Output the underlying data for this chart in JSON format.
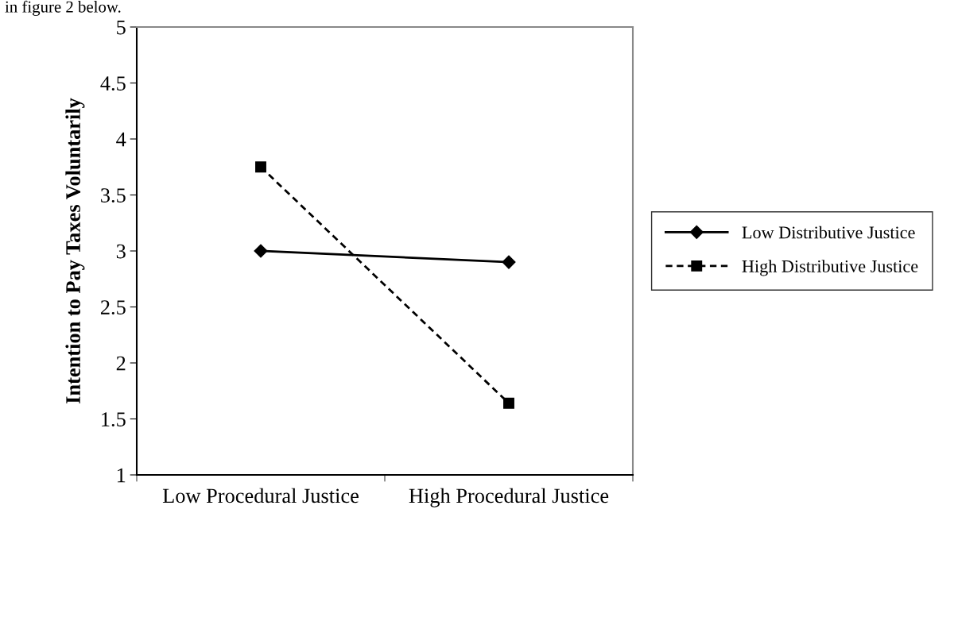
{
  "chart_data": {
    "type": "line",
    "ylabel": "Intention to Pay Taxes Voluntarily",
    "annotations": [
      "in figure 2 below."
    ],
    "categories": [
      "Low Procedural Justice",
      "High Procedural Justice"
    ],
    "series": [
      {
        "name": "Low Distributive Justice",
        "color": "#000000",
        "values": [
          3.0,
          2.9
        ],
        "marker": "diamond",
        "line_style": "solid"
      },
      {
        "name": "High Distributive Justice",
        "color": "#000000",
        "values": [
          3.75,
          1.64
        ],
        "marker": "square",
        "line_style": "dashed"
      }
    ],
    "ylim": [
      1,
      5
    ],
    "yticks": [
      1,
      1.5,
      2,
      2.5,
      3,
      3.5,
      4,
      4.5,
      5
    ],
    "grid": false,
    "legend": "right"
  }
}
